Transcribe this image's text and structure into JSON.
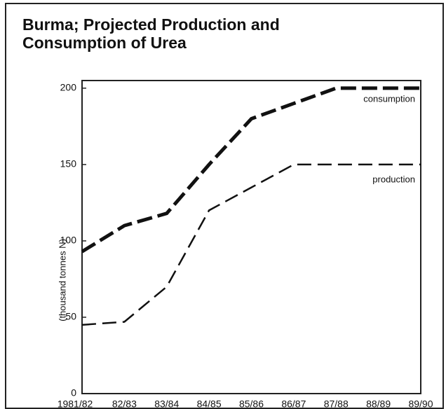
{
  "chart_data": {
    "type": "line",
    "title": "Burma; Projected Production and Consumption of Urea",
    "y_label": "(thousand tonnes N)",
    "categories": [
      "1981/82",
      "82/83",
      "83/84",
      "84/85",
      "85/86",
      "86/87",
      "87/88",
      "88/89",
      "89/90"
    ],
    "series": [
      {
        "name": "consumption",
        "color": "#111111",
        "values": [
          93,
          110,
          118,
          150,
          180,
          190,
          200,
          200,
          200
        ]
      },
      {
        "name": "production",
        "color": "#111111",
        "values": [
          45,
          47,
          70,
          120,
          135,
          150,
          150,
          150,
          150
        ]
      }
    ],
    "ylim": [
      0,
      205
    ],
    "yticks": [
      0,
      50,
      100,
      150,
      200
    ]
  }
}
